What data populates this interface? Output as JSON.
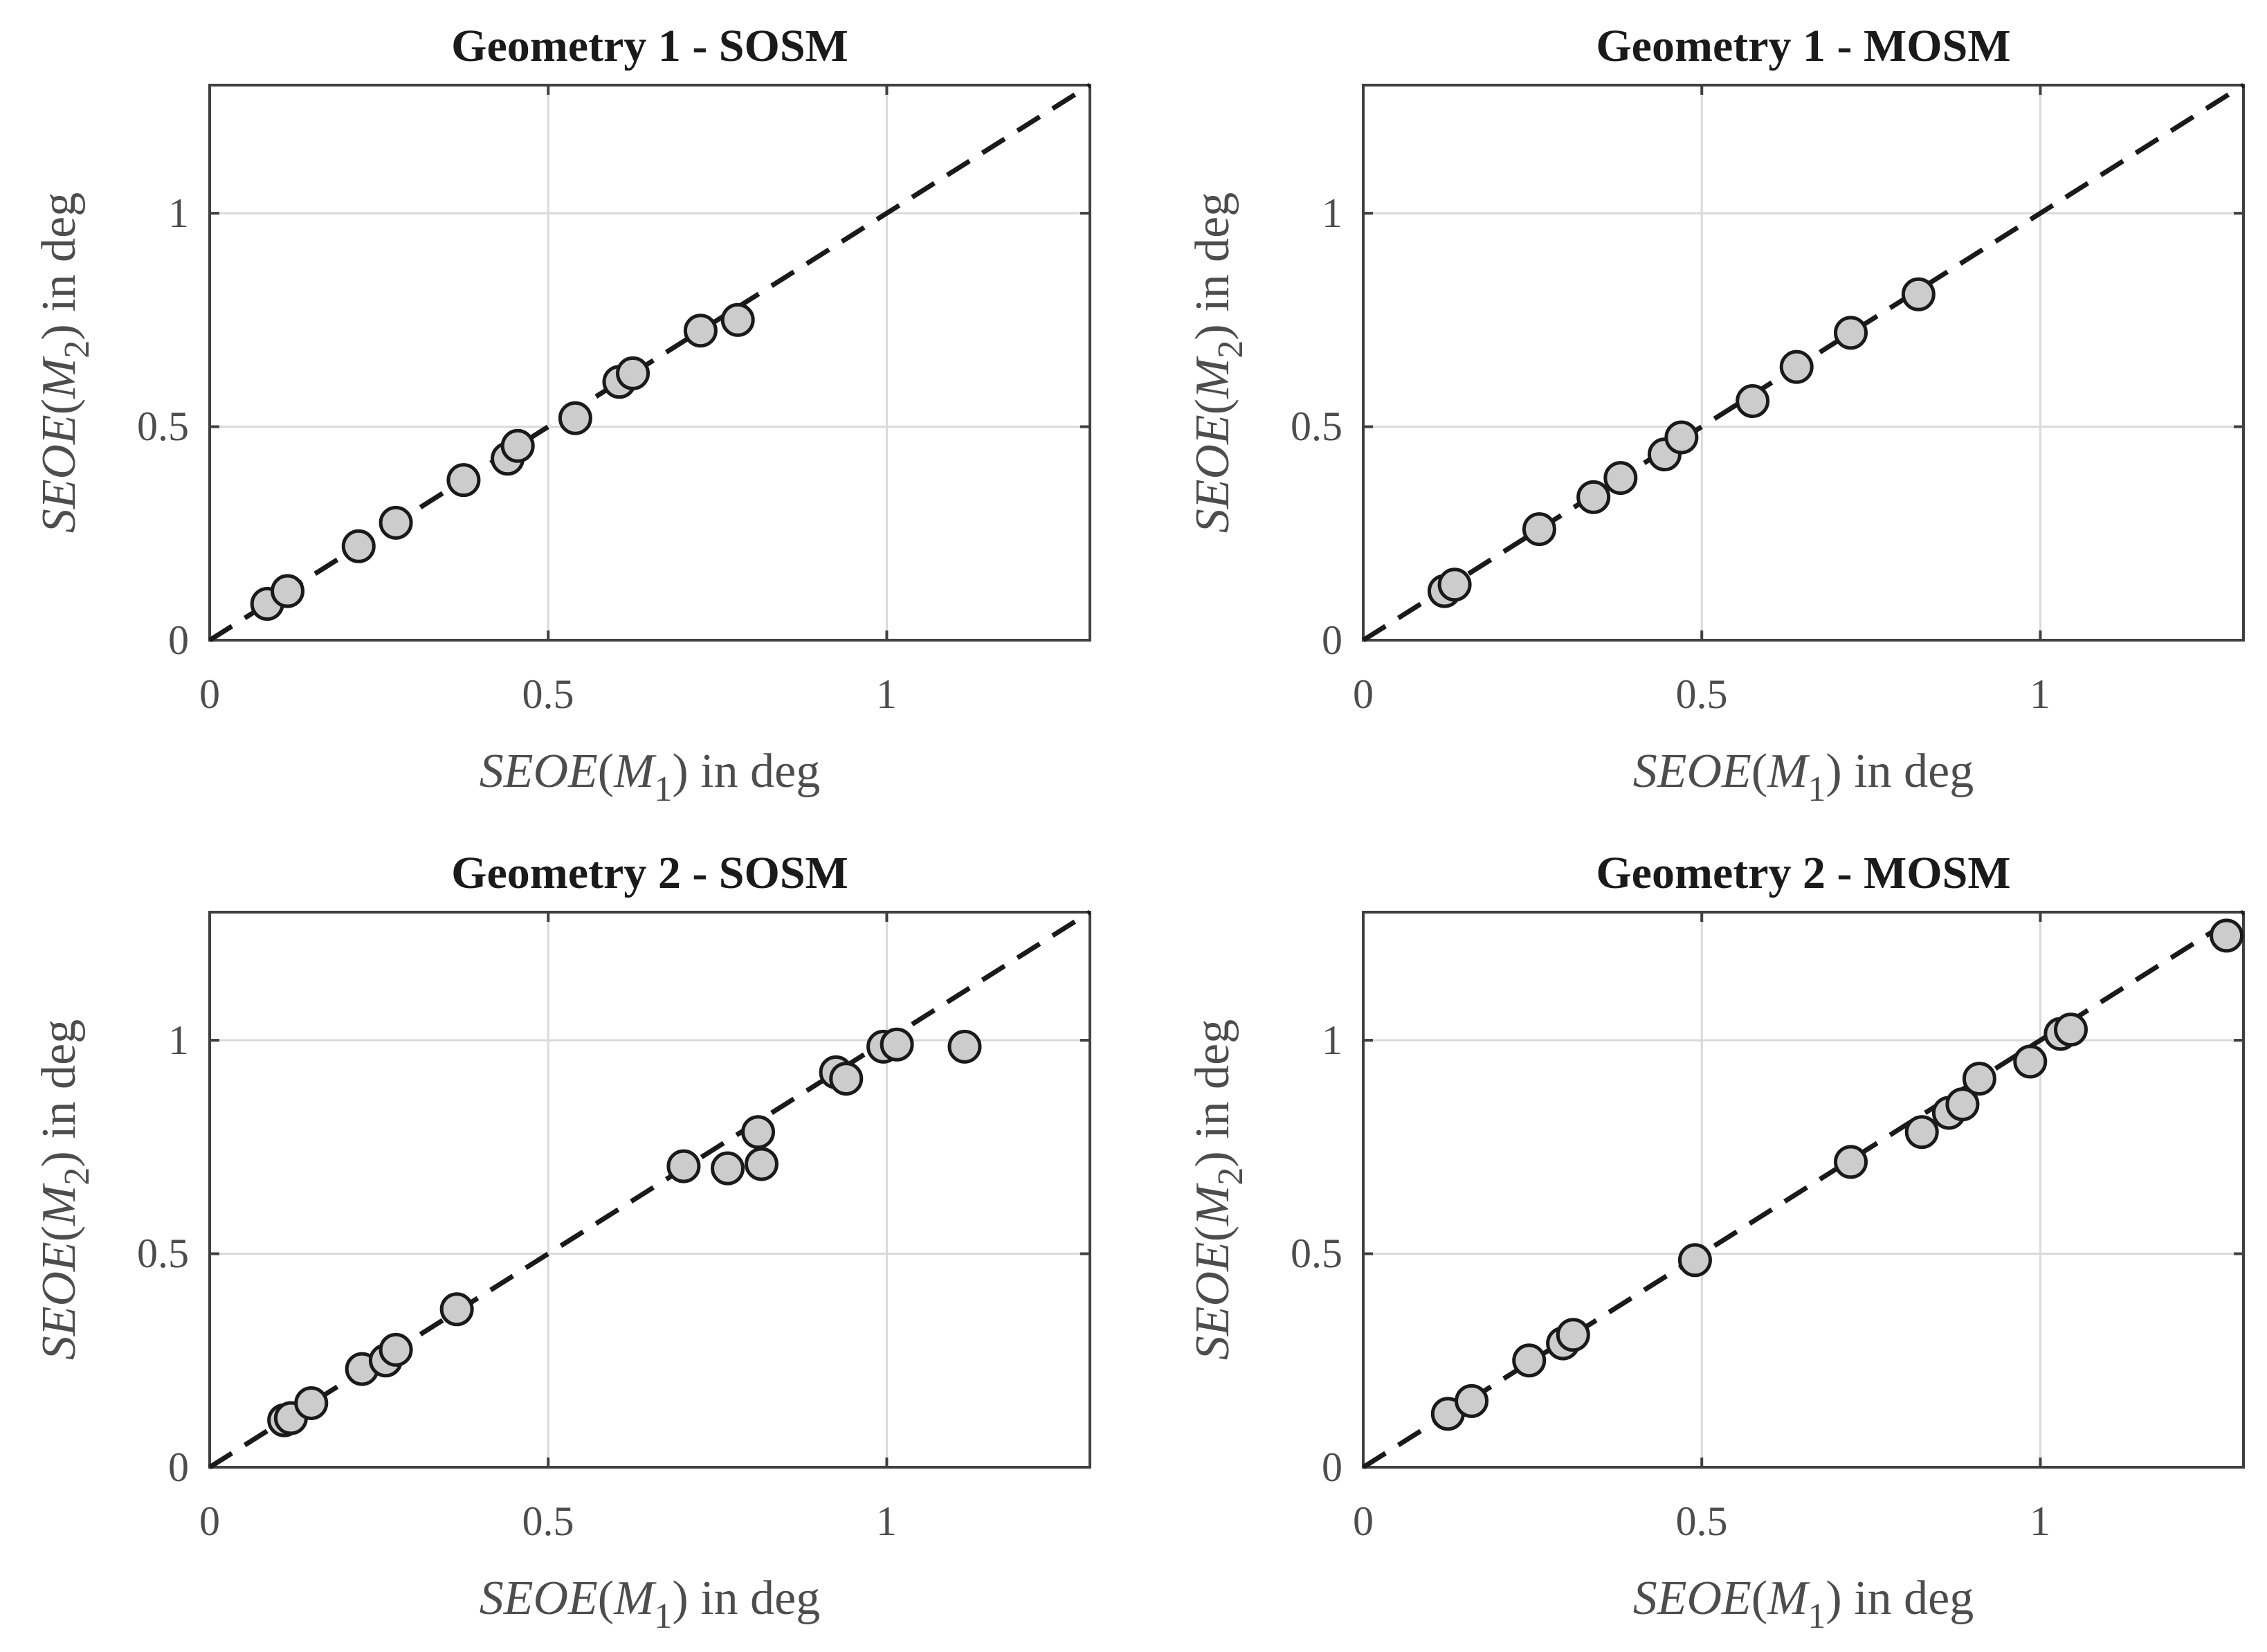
{
  "chart_data": [
    {
      "type": "scatter",
      "title": "Geometry 1 - SOSM",
      "xlabel": {
        "italic": "SEOE",
        "open": "(",
        "var": "M",
        "sub": "1",
        "close": ")",
        "unit": " in deg"
      },
      "ylabel": {
        "italic": "SEOE",
        "open": "(",
        "var": "M",
        "sub": "2",
        "close": ")",
        "unit": " in deg"
      },
      "xlim": [
        0,
        1.3
      ],
      "ylim": [
        0,
        1.3
      ],
      "xticks": [
        0,
        0.5,
        1
      ],
      "yticks": [
        0,
        0.5,
        1
      ],
      "xticklabels": [
        "0",
        "0.5",
        "1"
      ],
      "yticklabels": [
        "0",
        "0.5",
        "1"
      ],
      "grid": true,
      "reference_line": {
        "style": "dashed",
        "from": [
          0,
          0
        ],
        "to": [
          1.3,
          1.3
        ]
      },
      "x": [
        0.085,
        0.115,
        0.22,
        0.275,
        0.375,
        0.44,
        0.455,
        0.54,
        0.605,
        0.625,
        0.725,
        0.78
      ],
      "y": [
        0.085,
        0.115,
        0.22,
        0.275,
        0.375,
        0.425,
        0.455,
        0.52,
        0.605,
        0.625,
        0.725,
        0.75
      ]
    },
    {
      "type": "scatter",
      "title": "Geometry 1 - MOSM",
      "xlabel": {
        "italic": "SEOE",
        "open": "(",
        "var": "M",
        "sub": "1",
        "close": ")",
        "unit": " in deg"
      },
      "ylabel": {
        "italic": "SEOE",
        "open": "(",
        "var": "M",
        "sub": "2",
        "close": ")",
        "unit": " in deg"
      },
      "xlim": [
        0,
        1.3
      ],
      "ylim": [
        0,
        1.3
      ],
      "xticks": [
        0,
        0.5,
        1
      ],
      "yticks": [
        0,
        0.5,
        1
      ],
      "xticklabels": [
        "0",
        "0.5",
        "1"
      ],
      "yticklabels": [
        "0",
        "0.5",
        "1"
      ],
      "grid": true,
      "reference_line": {
        "style": "dashed",
        "from": [
          0,
          0
        ],
        "to": [
          1.3,
          1.3
        ]
      },
      "x": [
        0.12,
        0.135,
        0.26,
        0.34,
        0.38,
        0.445,
        0.47,
        0.575,
        0.64,
        0.72,
        0.82
      ],
      "y": [
        0.115,
        0.13,
        0.26,
        0.335,
        0.38,
        0.435,
        0.475,
        0.56,
        0.64,
        0.72,
        0.81
      ]
    },
    {
      "type": "scatter",
      "title": "Geometry 2 - SOSM",
      "xlabel": {
        "italic": "SEOE",
        "open": "(",
        "var": "M",
        "sub": "1",
        "close": ")",
        "unit": " in deg"
      },
      "ylabel": {
        "italic": "SEOE",
        "open": "(",
        "var": "M",
        "sub": "2",
        "close": ")",
        "unit": " in deg"
      },
      "xlim": [
        0,
        1.3
      ],
      "ylim": [
        0,
        1.3
      ],
      "xticks": [
        0,
        0.5,
        1
      ],
      "yticks": [
        0,
        0.5,
        1
      ],
      "xticklabels": [
        "0",
        "0.5",
        "1"
      ],
      "yticklabels": [
        "0",
        "0.5",
        "1"
      ],
      "grid": true,
      "reference_line": {
        "style": "dashed",
        "from": [
          0,
          0
        ],
        "to": [
          1.3,
          1.3
        ]
      },
      "x": [
        0.11,
        0.12,
        0.15,
        0.225,
        0.26,
        0.275,
        0.365,
        0.7,
        0.765,
        0.81,
        0.815,
        0.925,
        0.94,
        0.995,
        1.015,
        1.115
      ],
      "y": [
        0.11,
        0.115,
        0.15,
        0.23,
        0.25,
        0.275,
        0.37,
        0.705,
        0.7,
        0.785,
        0.71,
        0.925,
        0.91,
        0.985,
        0.99,
        0.985
      ]
    },
    {
      "type": "scatter",
      "title": "Geometry 2 - MOSM",
      "xlabel": {
        "italic": "SEOE",
        "open": "(",
        "var": "M",
        "sub": "1",
        "close": ")",
        "unit": " in deg"
      },
      "ylabel": {
        "italic": "SEOE",
        "open": "(",
        "var": "M",
        "sub": "2",
        "close": ")",
        "unit": " in deg"
      },
      "xlim": [
        0,
        1.3
      ],
      "ylim": [
        0,
        1.3
      ],
      "xticks": [
        0,
        0.5,
        1
      ],
      "yticks": [
        0,
        0.5,
        1
      ],
      "xticklabels": [
        "0",
        "0.5",
        "1"
      ],
      "yticklabels": [
        "0",
        "0.5",
        "1"
      ],
      "grid": true,
      "reference_line": {
        "style": "dashed",
        "from": [
          0,
          0
        ],
        "to": [
          1.3,
          1.3
        ]
      },
      "x": [
        0.125,
        0.16,
        0.245,
        0.295,
        0.31,
        0.49,
        0.72,
        0.825,
        0.865,
        0.885,
        0.91,
        0.985,
        1.03,
        1.045,
        1.275
      ],
      "y": [
        0.125,
        0.155,
        0.25,
        0.29,
        0.31,
        0.485,
        0.715,
        0.785,
        0.83,
        0.85,
        0.91,
        0.95,
        1.015,
        1.025,
        1.245
      ]
    }
  ]
}
